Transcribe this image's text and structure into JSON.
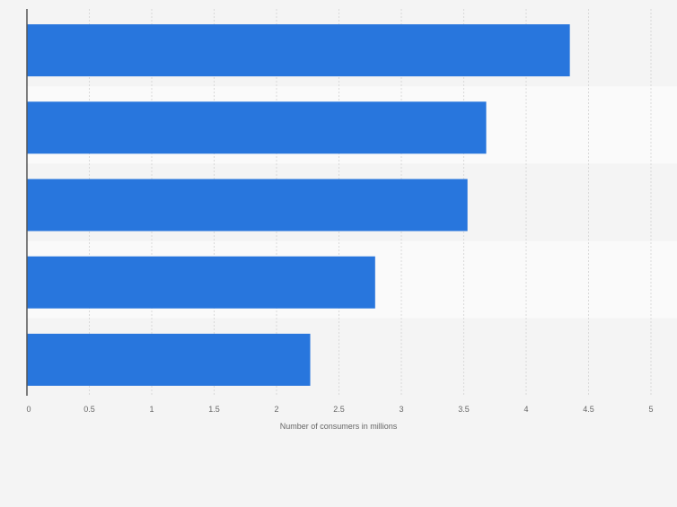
{
  "chart_data": {
    "type": "bar",
    "orientation": "horizontal",
    "categories": [
      "",
      "",
      "",
      "",
      ""
    ],
    "values": [
      4.35,
      3.68,
      3.53,
      2.79,
      2.27
    ],
    "xlabel": "Number of consumers in millions",
    "ylabel": "",
    "xlim": [
      0,
      5
    ],
    "xticks": [
      "0",
      "0.5",
      "1",
      "1.5",
      "2",
      "2.5",
      "3",
      "3.5",
      "4",
      "4.5",
      "5"
    ],
    "grid": true,
    "colors": {
      "bar": "#2876dd",
      "background": "#f4f4f4",
      "band_alt": "#fafafa",
      "grid": "#d9d9d9",
      "axis": "#555555",
      "text": "#666666"
    }
  }
}
